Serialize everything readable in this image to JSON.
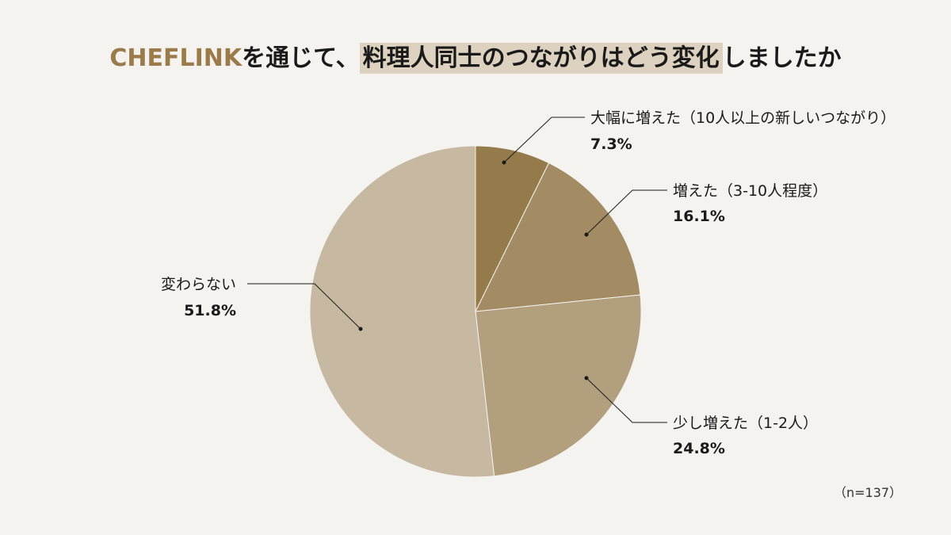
{
  "title": {
    "brand": "CHEFLINK",
    "middle": "を通じて、",
    "highlight": "料理人同士のつながりはどう変化",
    "tail": "しましたか"
  },
  "note": "（n=137）",
  "colors": {
    "background": "#f5f3ef",
    "brand": "#9a7b49",
    "highlight": "#ddd2bf"
  },
  "chart_data": {
    "type": "pie",
    "title": "CHEFLINKを通じて、料理人同士のつながりはどう変化しましたか",
    "slices": [
      {
        "label": "大幅に増えた（10人以上の新しいつながり）",
        "value": 7.3,
        "value_label": "7.3%",
        "color": "#957b4c"
      },
      {
        "label": "増えた（3-10人程度）",
        "value": 16.1,
        "value_label": "16.1%",
        "color": "#a38c64"
      },
      {
        "label": "少し増えた（1-2人）",
        "value": 24.8,
        "value_label": "24.8%",
        "color": "#b19f7e"
      },
      {
        "label": "変わらない",
        "value": 51.8,
        "value_label": "51.8%",
        "color": "#c6b8a1"
      }
    ],
    "start": "12 o'clock",
    "direction": "clockwise",
    "sample_size": "n=137"
  }
}
